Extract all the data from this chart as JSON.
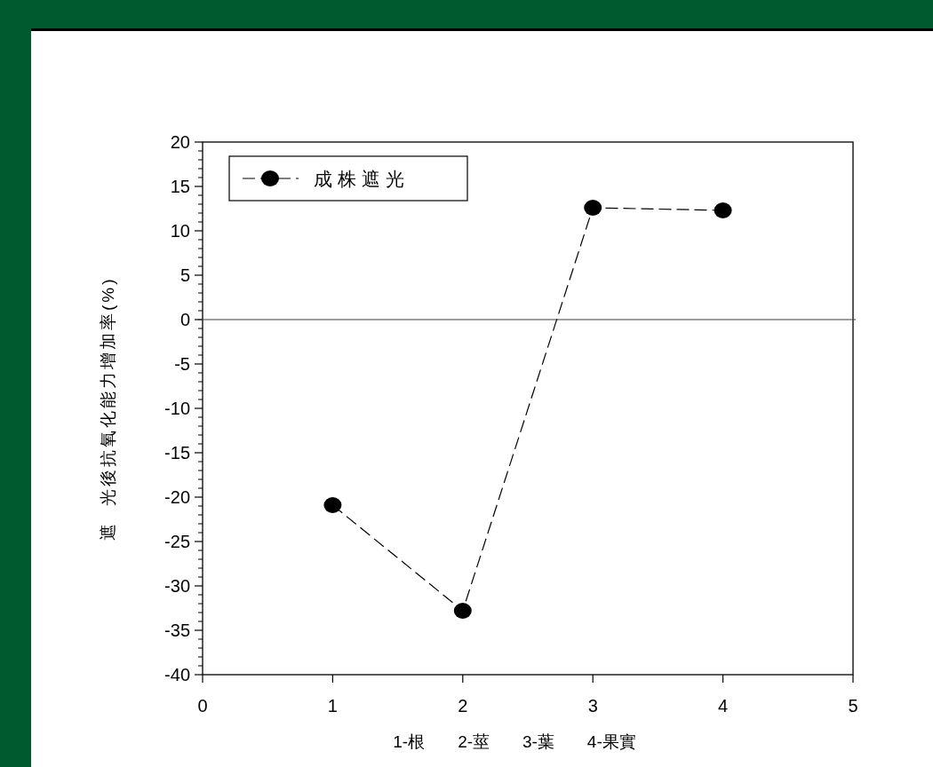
{
  "chart_data": {
    "type": "line",
    "xlabel": "1-根       2-莖       3-葉       4-果實",
    "ylabel": "遮  光後抗氧化能力增加率(%)",
    "x": [
      1,
      2,
      3,
      4
    ],
    "series": [
      {
        "name": "成株遮光",
        "color": "#000000",
        "values": [
          -20.9,
          -32.8,
          12.6,
          12.3
        ]
      }
    ],
    "xlim": [
      0,
      5
    ],
    "xticks": [
      0,
      1,
      2,
      3,
      4,
      5
    ],
    "ylim": [
      -40,
      20
    ],
    "yticks": [
      -40,
      -35,
      -30,
      -25,
      -20,
      -15,
      -10,
      -5,
      0,
      5,
      10,
      15,
      20
    ],
    "ref_lines": [
      {
        "axis": "y",
        "value": 0,
        "color": "#404040"
      }
    ],
    "legend": "top left",
    "marker": "circle",
    "line_style": "dashed"
  }
}
